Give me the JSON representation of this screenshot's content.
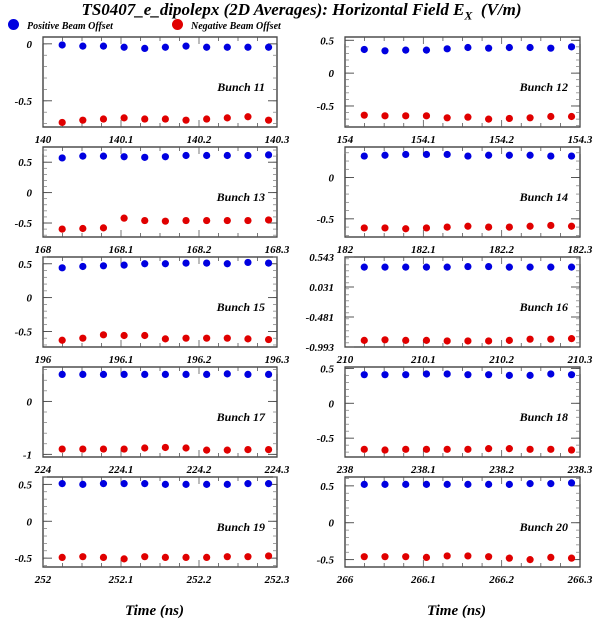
{
  "title_main": "TS0407_e_dipolepx (2D Averages): Horizontal Field E",
  "title_sub": "X",
  "title_unit": "(V/m)",
  "legend": [
    {
      "label": "Positive Beam Offset",
      "color": "#0000e0"
    },
    {
      "label": "Negative Beam Offset",
      "color": "#e00000"
    }
  ],
  "xlabel_left": "Time (ns)",
  "xlabel_right": "Time (ns)",
  "chart_data": [
    {
      "type": "scatter",
      "title": "Bunch 11",
      "xlim": [
        140,
        140.3
      ],
      "xticks": [
        "140",
        "140.1",
        "140.2",
        "140.3"
      ],
      "ylim": [
        -0.73,
        0.06
      ],
      "yticks": [
        {
          "v": 0,
          "label": "0"
        },
        {
          "v": -0.5,
          "label": "-0.5"
        }
      ],
      "series": [
        {
          "name": "Positive Beam Offset",
          "values": [
            -0.01,
            -0.02,
            -0.02,
            -0.03,
            -0.04,
            -0.03,
            -0.02,
            -0.03,
            -0.03,
            -0.03,
            -0.03
          ]
        },
        {
          "name": "Negative Beam Offset",
          "values": [
            -0.69,
            -0.67,
            -0.66,
            -0.65,
            -0.66,
            -0.66,
            -0.67,
            -0.66,
            -0.65,
            -0.64,
            -0.67
          ]
        }
      ]
    },
    {
      "type": "scatter",
      "title": "Bunch 12",
      "xlim": [
        154,
        154.3
      ],
      "xticks": [
        "154",
        "154.1",
        "154.2",
        "154.3"
      ],
      "ylim": [
        -0.82,
        0.55
      ],
      "yticks": [
        {
          "v": 0.5,
          "label": "0.5"
        },
        {
          "v": 0,
          "label": "0"
        },
        {
          "v": -0.5,
          "label": "-0.5"
        }
      ],
      "series": [
        {
          "name": "Positive Beam Offset",
          "values": [
            0.36,
            0.34,
            0.35,
            0.35,
            0.37,
            0.39,
            0.38,
            0.39,
            0.39,
            0.38,
            0.4
          ]
        },
        {
          "name": "Negative Beam Offset",
          "values": [
            -0.64,
            -0.65,
            -0.65,
            -0.65,
            -0.68,
            -0.67,
            -0.7,
            -0.69,
            -0.68,
            -0.66,
            -0.66
          ]
        }
      ]
    },
    {
      "type": "scatter",
      "title": "Bunch 13",
      "xlim": [
        168,
        168.3
      ],
      "xticks": [
        "168",
        "168.1",
        "168.2",
        "168.3"
      ],
      "ylim": [
        -0.73,
        0.75
      ],
      "yticks": [
        {
          "v": 0.5,
          "label": "0.5"
        },
        {
          "v": 0,
          "label": "0"
        },
        {
          "v": -0.5,
          "label": "-0.5"
        }
      ],
      "series": [
        {
          "name": "Positive Beam Offset",
          "values": [
            0.57,
            0.6,
            0.6,
            0.59,
            0.58,
            0.59,
            0.61,
            0.61,
            0.61,
            0.61,
            0.62
          ]
        },
        {
          "name": "Negative Beam Offset",
          "values": [
            -0.6,
            -0.59,
            -0.58,
            -0.42,
            -0.46,
            -0.47,
            -0.46,
            -0.46,
            -0.46,
            -0.46,
            -0.45
          ]
        }
      ]
    },
    {
      "type": "scatter",
      "title": "Bunch 14",
      "xlim": [
        182,
        182.3
      ],
      "xticks": [
        "182",
        "182.1",
        "182.2",
        "182.3"
      ],
      "ylim": [
        -0.72,
        0.37
      ],
      "yticks": [
        {
          "v": 0,
          "label": "0"
        },
        {
          "v": -0.5,
          "label": "-0.5"
        }
      ],
      "series": [
        {
          "name": "Positive Beam Offset",
          "values": [
            0.26,
            0.27,
            0.28,
            0.28,
            0.28,
            0.26,
            0.27,
            0.27,
            0.27,
            0.26,
            0.26
          ]
        },
        {
          "name": "Negative Beam Offset",
          "values": [
            -0.61,
            -0.61,
            -0.62,
            -0.61,
            -0.6,
            -0.59,
            -0.6,
            -0.6,
            -0.59,
            -0.58,
            -0.59
          ]
        }
      ]
    },
    {
      "type": "scatter",
      "title": "Bunch 15",
      "xlim": [
        196,
        196.3
      ],
      "xticks": [
        "196",
        "196.1",
        "196.2",
        "196.3"
      ],
      "ylim": [
        -0.73,
        0.6
      ],
      "yticks": [
        {
          "v": 0.5,
          "label": "0.5"
        },
        {
          "v": 0,
          "label": "0"
        },
        {
          "v": -0.5,
          "label": "-0.5"
        }
      ],
      "series": [
        {
          "name": "Positive Beam Offset",
          "values": [
            0.44,
            0.46,
            0.47,
            0.48,
            0.5,
            0.5,
            0.51,
            0.51,
            0.5,
            0.52,
            0.51
          ]
        },
        {
          "name": "Negative Beam Offset",
          "values": [
            -0.63,
            -0.6,
            -0.55,
            -0.56,
            -0.56,
            -0.61,
            -0.6,
            -0.6,
            -0.6,
            -0.61,
            -0.62
          ]
        }
      ]
    },
    {
      "type": "scatter",
      "title": "Bunch 16",
      "xlim": [
        210,
        210.3
      ],
      "xticks": [
        "210",
        "210.1",
        "210.2",
        "210.3"
      ],
      "ylim": [
        -0.993,
        0.543
      ],
      "yticks": [
        {
          "v": 0.543,
          "label": "0.543"
        },
        {
          "v": 0.031,
          "label": "0.031"
        },
        {
          "v": -0.481,
          "label": "-0.481"
        },
        {
          "v": -0.993,
          "label": "-0.993"
        }
      ],
      "series": [
        {
          "name": "Positive Beam Offset",
          "values": [
            0.37,
            0.37,
            0.37,
            0.37,
            0.37,
            0.38,
            0.38,
            0.37,
            0.37,
            0.37,
            0.37
          ]
        },
        {
          "name": "Negative Beam Offset",
          "values": [
            -0.88,
            -0.87,
            -0.88,
            -0.88,
            -0.89,
            -0.89,
            -0.89,
            -0.88,
            -0.86,
            -0.86,
            -0.85
          ]
        }
      ]
    },
    {
      "type": "scatter",
      "title": "Bunch 17",
      "xlim": [
        224,
        224.3
      ],
      "xticks": [
        "224",
        "224.1",
        "224.2",
        "224.3"
      ],
      "ylim": [
        -1.05,
        0.65
      ],
      "yticks": [
        {
          "v": 0,
          "label": "0"
        },
        {
          "v": -1,
          "label": "-1"
        }
      ],
      "series": [
        {
          "name": "Positive Beam Offset",
          "values": [
            0.51,
            0.51,
            0.51,
            0.51,
            0.51,
            0.51,
            0.51,
            0.51,
            0.52,
            0.51,
            0.51
          ]
        },
        {
          "name": "Negative Beam Offset",
          "values": [
            -0.9,
            -0.9,
            -0.9,
            -0.9,
            -0.88,
            -0.87,
            -0.88,
            -0.92,
            -0.92,
            -0.91,
            -0.91
          ]
        }
      ]
    },
    {
      "type": "scatter",
      "title": "Bunch 18",
      "xlim": [
        238,
        238.3
      ],
      "xticks": [
        "238",
        "238.1",
        "238.2",
        "238.3"
      ],
      "ylim": [
        -0.77,
        0.52
      ],
      "yticks": [
        {
          "v": 0.5,
          "label": "0.5"
        },
        {
          "v": 0,
          "label": "0"
        },
        {
          "v": -0.5,
          "label": "-0.5"
        }
      ],
      "series": [
        {
          "name": "Positive Beam Offset",
          "values": [
            0.41,
            0.41,
            0.41,
            0.42,
            0.42,
            0.41,
            0.41,
            0.4,
            0.4,
            0.42,
            0.41
          ]
        },
        {
          "name": "Negative Beam Offset",
          "values": [
            -0.66,
            -0.67,
            -0.66,
            -0.66,
            -0.66,
            -0.66,
            -0.65,
            -0.65,
            -0.66,
            -0.66,
            -0.67
          ]
        }
      ]
    },
    {
      "type": "scatter",
      "title": "Bunch 19",
      "xlim": [
        252,
        252.3
      ],
      "xticks": [
        "252",
        "252.1",
        "252.2",
        "252.3"
      ],
      "ylim": [
        -0.62,
        0.6
      ],
      "yticks": [
        {
          "v": 0.5,
          "label": "0.5"
        },
        {
          "v": 0,
          "label": "0"
        },
        {
          "v": -0.5,
          "label": "-0.5"
        }
      ],
      "series": [
        {
          "name": "Positive Beam Offset",
          "values": [
            0.51,
            0.5,
            0.51,
            0.51,
            0.51,
            0.5,
            0.5,
            0.5,
            0.5,
            0.51,
            0.51
          ]
        },
        {
          "name": "Negative Beam Offset",
          "values": [
            -0.49,
            -0.48,
            -0.49,
            -0.51,
            -0.48,
            -0.49,
            -0.49,
            -0.49,
            -0.48,
            -0.48,
            -0.47
          ]
        }
      ]
    },
    {
      "type": "scatter",
      "title": "Bunch 20",
      "xlim": [
        266,
        266.3
      ],
      "xticks": [
        "266",
        "266.1",
        "266.2",
        "266.3"
      ],
      "ylim": [
        -0.6,
        0.62
      ],
      "yticks": [
        {
          "v": 0.5,
          "label": "0.5"
        },
        {
          "v": 0,
          "label": "0"
        },
        {
          "v": -0.5,
          "label": "-0.5"
        }
      ],
      "series": [
        {
          "name": "Positive Beam Offset",
          "values": [
            0.52,
            0.52,
            0.52,
            0.52,
            0.52,
            0.52,
            0.52,
            0.52,
            0.53,
            0.53,
            0.54
          ]
        },
        {
          "name": "Negative Beam Offset",
          "values": [
            -0.46,
            -0.46,
            -0.46,
            -0.47,
            -0.45,
            -0.45,
            -0.46,
            -0.48,
            -0.5,
            -0.47,
            -0.48
          ]
        }
      ]
    }
  ]
}
